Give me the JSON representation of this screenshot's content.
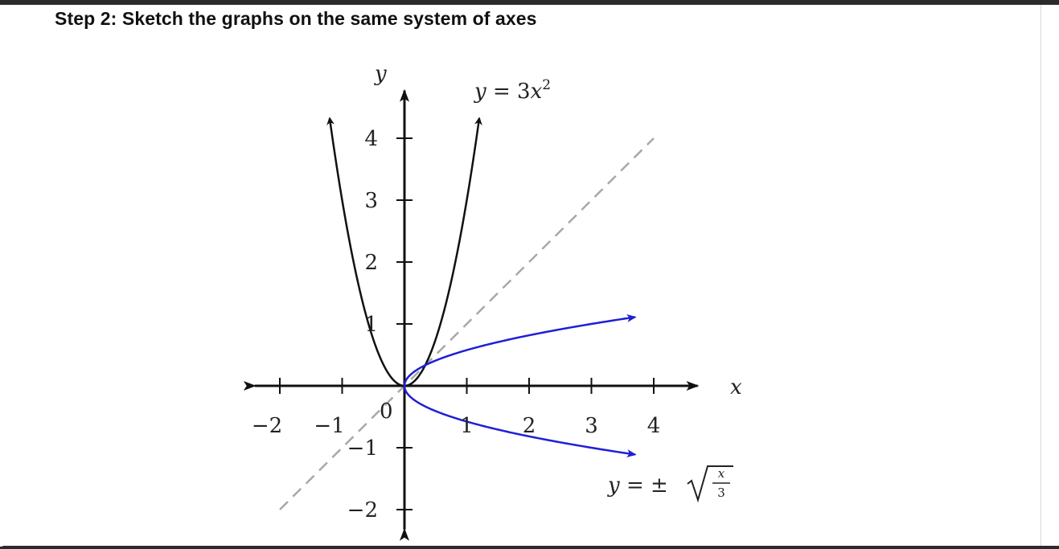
{
  "header": {
    "title": "Step 2: Sketch the graphs on the same system of axes"
  },
  "chart_data": {
    "type": "line",
    "xlabel": "x",
    "ylabel": "y",
    "xlim": [
      -2.3,
      4.6
    ],
    "ylim": [
      -2.4,
      4.9
    ],
    "x_ticks": [
      -2,
      -1,
      1,
      2,
      3,
      4
    ],
    "y_ticks": [
      -2,
      -1,
      1,
      2,
      3,
      4
    ],
    "x_tick_labels": [
      "−2",
      "−1",
      "1",
      "2",
      "3",
      "4"
    ],
    "y_tick_labels": [
      "−2",
      "−1",
      "1",
      "2",
      "3",
      "4"
    ],
    "origin_label": "0",
    "grid": false,
    "series": [
      {
        "label": "y = 3x²",
        "label_parts": {
          "lhs": "y",
          "eq": " = 3",
          "var": "x",
          "exp": "2"
        },
        "expression": "3x^2",
        "x_range": [
          -1.2,
          1.2
        ],
        "color": "#111111",
        "style": "solid"
      },
      {
        "label": "y = ±√(x/3)",
        "label_parts": {
          "lhs": "y",
          "eq": " = ±",
          "num": "x",
          "den": "3"
        },
        "expression": "±sqrt(x/3)",
        "x_range": [
          0,
          3.7
        ],
        "color": "#1f1fd6",
        "style": "solid"
      },
      {
        "expression": "x",
        "x_range": [
          -2,
          4
        ],
        "color": "#a8a8a8",
        "style": "dashed"
      }
    ]
  }
}
